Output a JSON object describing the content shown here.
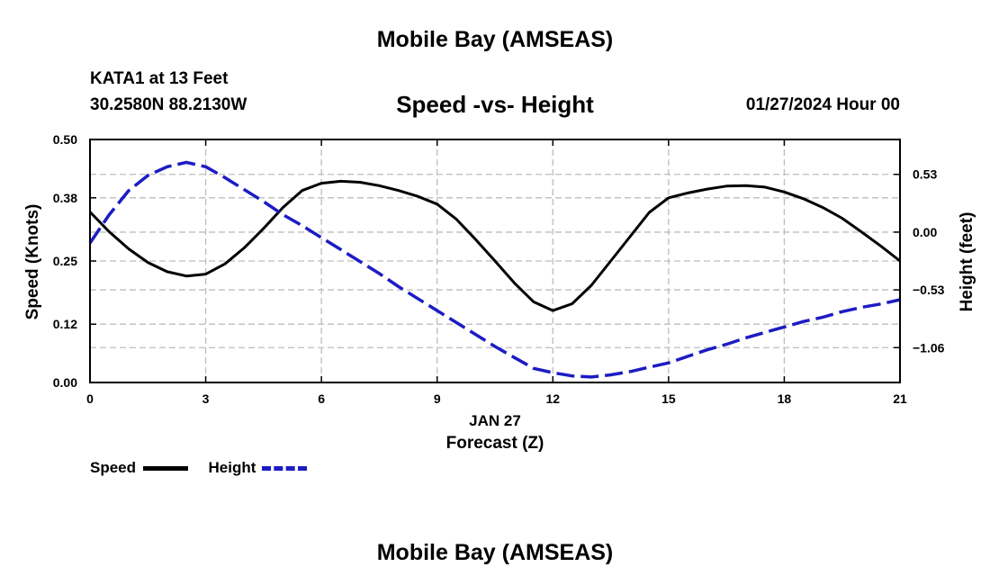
{
  "header": {
    "title": "Mobile Bay (AMSEAS)",
    "station": "KATA1 at 13 Feet",
    "coords": "30.2580N  88.2130W",
    "subtitle": "Speed -vs- Height",
    "datetime": "01/27/2024 Hour 00"
  },
  "footer": {
    "title": "Mobile Bay (AMSEAS)"
  },
  "chart_data": {
    "type": "line",
    "title": "Speed -vs- Height",
    "xlabel_date": "JAN 27",
    "xlabel": "Forecast (Z)",
    "ylabel": "Speed (Knots)",
    "y2label": "Height (feet)",
    "xlim": [
      0,
      21
    ],
    "ylim": [
      0,
      0.5
    ],
    "y2lim": [
      -1.38,
      0.85
    ],
    "x_ticks": [
      "0",
      "3",
      "6",
      "9",
      "12",
      "15",
      "18",
      "21"
    ],
    "y_ticks": [
      "0.00",
      "0.12",
      "0.25",
      "0.38",
      "0.50"
    ],
    "y2_ticks": [
      "0.53",
      "0.00",
      "−0.53",
      "−1.06"
    ],
    "grid": true,
    "legend_position": "bottom-left",
    "series": [
      {
        "name": "Speed",
        "axis": "left",
        "color": "#000000",
        "style": "solid",
        "x": [
          0,
          0.5,
          1,
          1.5,
          2,
          2.5,
          3,
          3.5,
          4,
          4.5,
          5,
          5.5,
          6,
          6.5,
          7,
          7.5,
          8,
          8.5,
          9,
          9.5,
          10,
          10.5,
          11,
          11.5,
          12,
          12.5,
          13,
          13.5,
          14,
          14.5,
          15,
          15.5,
          16,
          16.5,
          17,
          17.5,
          18,
          18.5,
          19,
          19.5,
          20,
          20.5,
          21
        ],
        "values": [
          0.351,
          0.31,
          0.275,
          0.247,
          0.228,
          0.219,
          0.223,
          0.244,
          0.277,
          0.317,
          0.36,
          0.395,
          0.41,
          0.414,
          0.412,
          0.405,
          0.395,
          0.383,
          0.367,
          0.336,
          0.294,
          0.25,
          0.205,
          0.166,
          0.148,
          0.162,
          0.2,
          0.25,
          0.3,
          0.35,
          0.38,
          0.39,
          0.398,
          0.404,
          0.405,
          0.402,
          0.392,
          0.378,
          0.36,
          0.338,
          0.31,
          0.281,
          0.25
        ]
      },
      {
        "name": "Height",
        "axis": "right",
        "color": "#1c1cc4",
        "style": "dashed",
        "x": [
          0,
          0.5,
          1,
          1.5,
          2,
          2.5,
          3,
          3.5,
          4,
          4.5,
          5,
          5.5,
          6,
          6.5,
          7,
          7.5,
          8,
          8.5,
          9,
          9.5,
          10,
          10.5,
          11,
          11.5,
          12,
          12.5,
          13,
          13.5,
          14,
          14.5,
          15,
          15.5,
          16,
          16.5,
          17,
          17.5,
          18,
          18.5,
          19,
          19.5,
          20,
          20.5,
          21
        ],
        "values": [
          -0.1,
          0.16,
          0.38,
          0.52,
          0.6,
          0.64,
          0.6,
          0.5,
          0.39,
          0.28,
          0.16,
          0.06,
          -0.05,
          -0.16,
          -0.27,
          -0.38,
          -0.5,
          -0.61,
          -0.72,
          -0.83,
          -0.94,
          -1.05,
          -1.15,
          -1.25,
          -1.29,
          -1.32,
          -1.33,
          -1.31,
          -1.28,
          -1.24,
          -1.2,
          -1.14,
          -1.08,
          -1.03,
          -0.97,
          -0.92,
          -0.87,
          -0.82,
          -0.78,
          -0.73,
          -0.69,
          -0.66,
          -0.62
        ]
      }
    ]
  },
  "legend": {
    "speed_label": "Speed",
    "height_label": "Height"
  }
}
